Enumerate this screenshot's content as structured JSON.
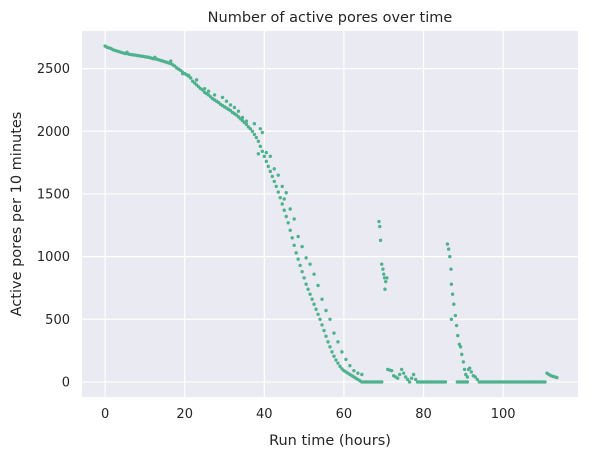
{
  "chart_data": {
    "type": "scatter",
    "title": "Number of active pores over time",
    "xlabel": "Run time (hours)",
    "ylabel": "Active pores per 10 minutes",
    "xlim": [
      -5.8,
      118.8
    ],
    "ylim": [
      -120,
      2800
    ],
    "xticks": [
      "0",
      "20",
      "40",
      "60",
      "80",
      "100"
    ],
    "yticks": [
      "0",
      "500",
      "1000",
      "1500",
      "2000",
      "2500"
    ],
    "grid": true,
    "background_color": "#eaeaf2",
    "point_color": "#4eb28d",
    "series": [
      {
        "points": [
          [
            0.0,
            2680
          ],
          [
            0.5,
            2670
          ],
          [
            1.0,
            2665
          ],
          [
            1.5,
            2660
          ],
          [
            2.0,
            2650
          ],
          [
            2.5,
            2645
          ],
          [
            3.0,
            2640
          ],
          [
            3.5,
            2635
          ],
          [
            4.0,
            2630
          ],
          [
            4.5,
            2625
          ],
          [
            5.0,
            2620
          ],
          [
            5.5,
            2620
          ],
          [
            6.0,
            2615
          ],
          [
            6.5,
            2612
          ],
          [
            7.0,
            2610
          ],
          [
            7.5,
            2608
          ],
          [
            8.0,
            2605
          ],
          [
            8.5,
            2603
          ],
          [
            9.0,
            2600
          ],
          [
            9.5,
            2598
          ],
          [
            10.0,
            2595
          ],
          [
            10.5,
            2592
          ],
          [
            11.0,
            2590
          ],
          [
            11.5,
            2585
          ],
          [
            12.0,
            2580
          ],
          [
            12.5,
            2578
          ],
          [
            13.0,
            2575
          ],
          [
            13.5,
            2570
          ],
          [
            14.0,
            2565
          ],
          [
            14.5,
            2560
          ],
          [
            15.0,
            2555
          ],
          [
            15.5,
            2550
          ],
          [
            16.0,
            2545
          ],
          [
            16.5,
            2540
          ],
          [
            17.0,
            2530
          ],
          [
            17.5,
            2520
          ],
          [
            18.0,
            2505
          ],
          [
            18.5,
            2495
          ],
          [
            19.0,
            2485
          ],
          [
            19.5,
            2470
          ],
          [
            20.0,
            2460
          ],
          [
            20.5,
            2450
          ],
          [
            21.0,
            2440
          ],
          [
            21.5,
            2425
          ],
          [
            22.0,
            2400
          ],
          [
            22.5,
            2385
          ],
          [
            23.0,
            2370
          ],
          [
            23.5,
            2355
          ],
          [
            24.0,
            2340
          ],
          [
            24.5,
            2330
          ],
          [
            25.0,
            2310
          ],
          [
            25.5,
            2300
          ],
          [
            26.0,
            2290
          ],
          [
            26.5,
            2275
          ],
          [
            27.0,
            2260
          ],
          [
            27.5,
            2250
          ],
          [
            28.0,
            2240
          ],
          [
            28.5,
            2230
          ],
          [
            29.0,
            2215
          ],
          [
            29.5,
            2205
          ],
          [
            30.0,
            2195
          ],
          [
            30.5,
            2185
          ],
          [
            31.0,
            2175
          ],
          [
            31.5,
            2165
          ],
          [
            32.0,
            2150
          ],
          [
            32.5,
            2140
          ],
          [
            33.0,
            2130
          ],
          [
            33.5,
            2115
          ],
          [
            34.0,
            2100
          ],
          [
            34.5,
            2085
          ],
          [
            35.0,
            2070
          ],
          [
            35.5,
            2055
          ],
          [
            36.0,
            2035
          ],
          [
            36.5,
            2020
          ],
          [
            37.0,
            2000
          ],
          [
            37.5,
            1975
          ],
          [
            38.0,
            1950
          ],
          [
            38.5,
            1920
          ],
          [
            39.0,
            1880
          ],
          [
            39.5,
            1840
          ],
          [
            40.0,
            1800
          ],
          [
            40.5,
            1760
          ],
          [
            41.0,
            1720
          ],
          [
            41.5,
            1680
          ],
          [
            42.0,
            1640
          ],
          [
            42.5,
            1600
          ],
          [
            43.0,
            1560
          ],
          [
            43.5,
            1515
          ],
          [
            44.0,
            1470
          ],
          [
            44.5,
            1420
          ],
          [
            45.0,
            1370
          ],
          [
            45.5,
            1320
          ],
          [
            46.0,
            1270
          ],
          [
            46.5,
            1210
          ],
          [
            47.0,
            1150
          ],
          [
            47.5,
            1090
          ],
          [
            48.0,
            1030
          ],
          [
            48.5,
            980
          ],
          [
            49.0,
            930
          ],
          [
            49.5,
            880
          ],
          [
            50.0,
            830
          ],
          [
            50.5,
            780
          ],
          [
            51.0,
            740
          ],
          [
            51.5,
            700
          ],
          [
            52.0,
            660
          ],
          [
            52.5,
            620
          ],
          [
            53.0,
            580
          ],
          [
            53.5,
            540
          ],
          [
            54.0,
            500
          ],
          [
            54.5,
            455
          ],
          [
            55.0,
            410
          ],
          [
            55.5,
            365
          ],
          [
            56.0,
            320
          ],
          [
            56.5,
            280
          ],
          [
            57.0,
            240
          ],
          [
            57.5,
            205
          ],
          [
            58.0,
            175
          ],
          [
            58.5,
            150
          ],
          [
            59.0,
            125
          ],
          [
            59.5,
            105
          ],
          [
            60.0,
            90
          ],
          [
            60.5,
            80
          ],
          [
            61.0,
            70
          ],
          [
            61.5,
            60
          ],
          [
            62.0,
            50
          ],
          [
            62.5,
            40
          ],
          [
            63.0,
            30
          ],
          [
            63.5,
            20
          ],
          [
            64.0,
            10
          ],
          [
            5.5,
            2630
          ],
          [
            12.5,
            2590
          ],
          [
            16.5,
            2560
          ],
          [
            19.5,
            2460
          ],
          [
            21.0,
            2445
          ],
          [
            23.0,
            2410
          ],
          [
            25.0,
            2340
          ],
          [
            26.0,
            2320
          ],
          [
            27.5,
            2290
          ],
          [
            29.5,
            2270
          ],
          [
            30.5,
            2240
          ],
          [
            31.5,
            2210
          ],
          [
            32.5,
            2190
          ],
          [
            33.5,
            2160
          ],
          [
            34.5,
            2110
          ],
          [
            35.5,
            2080
          ],
          [
            37.5,
            2060
          ],
          [
            39.0,
            2020
          ],
          [
            39.5,
            1990
          ],
          [
            38.5,
            1820
          ],
          [
            40.5,
            1830
          ],
          [
            41.5,
            1800
          ],
          [
            42.5,
            1700
          ],
          [
            43.5,
            1650
          ],
          [
            44.5,
            1560
          ],
          [
            45.5,
            1510
          ],
          [
            45.0,
            1460
          ],
          [
            46.5,
            1380
          ],
          [
            47.5,
            1300
          ],
          [
            48.5,
            1160
          ],
          [
            49.5,
            1080
          ],
          [
            50.5,
            990
          ],
          [
            51.5,
            940
          ],
          [
            52.5,
            860
          ],
          [
            53.5,
            770
          ],
          [
            54.5,
            660
          ],
          [
            55.5,
            570
          ],
          [
            56.5,
            500
          ],
          [
            57.5,
            390
          ],
          [
            58.5,
            320
          ],
          [
            59.5,
            240
          ],
          [
            60.5,
            180
          ],
          [
            61.5,
            130
          ],
          [
            62.5,
            90
          ],
          [
            63.5,
            70
          ],
          [
            64.5,
            60
          ],
          [
            65.0,
            0
          ],
          [
            64.5,
            0
          ],
          [
            65.5,
            0
          ],
          [
            66.0,
            0
          ],
          [
            66.5,
            0
          ],
          [
            67.0,
            0
          ],
          [
            67.5,
            0
          ],
          [
            68.0,
            0
          ],
          [
            68.5,
            0
          ],
          [
            69.0,
            0
          ],
          [
            69.5,
            0
          ],
          [
            68.8,
            1280
          ],
          [
            69.0,
            1240
          ],
          [
            69.2,
            1130
          ],
          [
            69.5,
            940
          ],
          [
            69.8,
            900
          ],
          [
            70.0,
            860
          ],
          [
            70.2,
            830
          ],
          [
            70.5,
            800
          ],
          [
            70.3,
            740
          ],
          [
            70.8,
            830
          ],
          [
            71.0,
            100
          ],
          [
            71.5,
            95
          ],
          [
            72.0,
            90
          ],
          [
            72.5,
            50
          ],
          [
            73.0,
            40
          ],
          [
            73.5,
            30
          ],
          [
            74.0,
            60
          ],
          [
            74.5,
            100
          ],
          [
            75.0,
            70
          ],
          [
            75.5,
            40
          ],
          [
            76.0,
            20
          ],
          [
            76.5,
            0
          ],
          [
            77.0,
            30
          ],
          [
            77.5,
            60
          ],
          [
            78.0,
            20
          ],
          [
            78.5,
            0
          ],
          [
            79.0,
            0
          ],
          [
            79.5,
            0
          ],
          [
            80.0,
            0
          ],
          [
            80.5,
            0
          ],
          [
            81.0,
            0
          ],
          [
            81.5,
            0
          ],
          [
            82.0,
            0
          ],
          [
            82.5,
            0
          ],
          [
            83.0,
            0
          ],
          [
            83.5,
            0
          ],
          [
            84.0,
            0
          ],
          [
            84.5,
            0
          ],
          [
            85.0,
            0
          ],
          [
            85.5,
            0
          ],
          [
            86.0,
            1100
          ],
          [
            86.3,
            1060
          ],
          [
            86.6,
            1000
          ],
          [
            86.9,
            900
          ],
          [
            87.0,
            780
          ],
          [
            87.3,
            700
          ],
          [
            87.6,
            620
          ],
          [
            87.0,
            500
          ],
          [
            88.0,
            530
          ],
          [
            88.3,
            450
          ],
          [
            88.6,
            370
          ],
          [
            89.0,
            300
          ],
          [
            89.3,
            280
          ],
          [
            89.6,
            220
          ],
          [
            90.0,
            160
          ],
          [
            90.3,
            100
          ],
          [
            90.6,
            60
          ],
          [
            91.0,
            40
          ],
          [
            91.3,
            100
          ],
          [
            91.6,
            110
          ],
          [
            92.0,
            80
          ],
          [
            92.5,
            50
          ],
          [
            93.0,
            40
          ],
          [
            93.5,
            20
          ],
          [
            94.0,
            0
          ],
          [
            88.5,
            0
          ],
          [
            89.0,
            0
          ],
          [
            89.5,
            0
          ],
          [
            90.0,
            0
          ],
          [
            90.5,
            0
          ],
          [
            91.0,
            0
          ],
          [
            94.5,
            0
          ],
          [
            95.0,
            0
          ],
          [
            95.5,
            0
          ],
          [
            96.0,
            0
          ],
          [
            96.5,
            0
          ],
          [
            97.0,
            0
          ],
          [
            97.5,
            0
          ],
          [
            98.0,
            0
          ],
          [
            98.5,
            0
          ],
          [
            99.0,
            0
          ],
          [
            99.5,
            0
          ],
          [
            100.0,
            0
          ],
          [
            100.5,
            0
          ],
          [
            101.0,
            0
          ],
          [
            101.5,
            0
          ],
          [
            102.0,
            0
          ],
          [
            102.5,
            0
          ],
          [
            103.0,
            0
          ],
          [
            103.5,
            0
          ],
          [
            104.0,
            0
          ],
          [
            104.5,
            0
          ],
          [
            105.0,
            0
          ],
          [
            105.5,
            0
          ],
          [
            106.0,
            0
          ],
          [
            106.5,
            0
          ],
          [
            107.0,
            0
          ],
          [
            107.5,
            0
          ],
          [
            108.0,
            0
          ],
          [
            108.5,
            0
          ],
          [
            109.0,
            0
          ],
          [
            109.5,
            0
          ],
          [
            110.0,
            0
          ],
          [
            110.5,
            0
          ],
          [
            111.0,
            70
          ],
          [
            111.5,
            60
          ],
          [
            112.0,
            50
          ],
          [
            112.5,
            45
          ],
          [
            113.0,
            40
          ],
          [
            113.5,
            35
          ]
        ]
      }
    ]
  }
}
